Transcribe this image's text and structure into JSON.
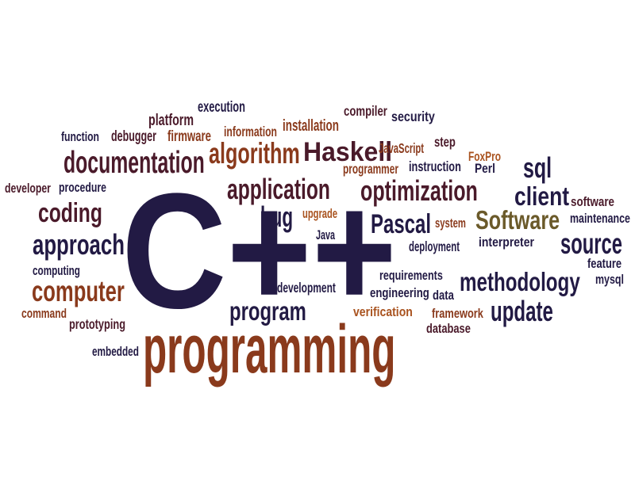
{
  "colors": {
    "navy": "#221a44",
    "plum": "#4a1a2a",
    "brown": "#8a3a1c",
    "orange": "#a9531f",
    "tan": "#6b5a2a"
  },
  "words": [
    {
      "id": "cpp",
      "text": "C++",
      "color": "navy"
    },
    {
      "id": "programming",
      "text": "programming",
      "color": "brown"
    },
    {
      "id": "documentation",
      "text": "documentation",
      "color": "plum"
    },
    {
      "id": "algorithm",
      "text": "algorithm",
      "color": "brown"
    },
    {
      "id": "haskell",
      "text": "Haskell",
      "color": "plum"
    },
    {
      "id": "application",
      "text": "application",
      "color": "plum"
    },
    {
      "id": "optimization",
      "text": "optimization",
      "color": "plum"
    },
    {
      "id": "software-big",
      "text": "Software",
      "color": "tan"
    },
    {
      "id": "methodology",
      "text": "methodology",
      "color": "navy"
    },
    {
      "id": "computer",
      "text": "computer",
      "color": "brown"
    },
    {
      "id": "approach",
      "text": "approach",
      "color": "navy"
    },
    {
      "id": "coding",
      "text": "coding",
      "color": "plum"
    },
    {
      "id": "program",
      "text": "program",
      "color": "navy"
    },
    {
      "id": "source",
      "text": "source",
      "color": "navy"
    },
    {
      "id": "update",
      "text": "update",
      "color": "navy"
    },
    {
      "id": "client",
      "text": "client",
      "color": "navy"
    },
    {
      "id": "pascal",
      "text": "Pascal",
      "color": "navy"
    },
    {
      "id": "sql",
      "text": "sql",
      "color": "navy"
    },
    {
      "id": "bug",
      "text": "bug",
      "color": "navy"
    },
    {
      "id": "execution",
      "text": "execution",
      "color": "navy"
    },
    {
      "id": "platform",
      "text": "platform",
      "color": "plum"
    },
    {
      "id": "compiler",
      "text": "compiler",
      "color": "plum"
    },
    {
      "id": "security",
      "text": "security",
      "color": "navy"
    },
    {
      "id": "function",
      "text": "function",
      "color": "navy"
    },
    {
      "id": "debugger",
      "text": "debugger",
      "color": "plum"
    },
    {
      "id": "firmware",
      "text": "firmware",
      "color": "brown"
    },
    {
      "id": "information",
      "text": "information",
      "color": "brown"
    },
    {
      "id": "installation",
      "text": "installation",
      "color": "brown"
    },
    {
      "id": "step",
      "text": "step",
      "color": "plum"
    },
    {
      "id": "javascript",
      "text": "JavaScript",
      "color": "brown"
    },
    {
      "id": "foxpro",
      "text": "FoxPro",
      "color": "orange"
    },
    {
      "id": "perl",
      "text": "Perl",
      "color": "navy"
    },
    {
      "id": "programmer",
      "text": "programmer",
      "color": "brown"
    },
    {
      "id": "instruction",
      "text": "instruction",
      "color": "navy"
    },
    {
      "id": "developer",
      "text": "developer",
      "color": "plum"
    },
    {
      "id": "procedure",
      "text": "procedure",
      "color": "navy"
    },
    {
      "id": "upgrade",
      "text": "upgrade",
      "color": "orange"
    },
    {
      "id": "java",
      "text": "Java",
      "color": "navy"
    },
    {
      "id": "system",
      "text": "system",
      "color": "brown"
    },
    {
      "id": "deployment",
      "text": "deployment",
      "color": "navy"
    },
    {
      "id": "interpreter",
      "text": "interpreter",
      "color": "navy"
    },
    {
      "id": "software-small",
      "text": "software",
      "color": "plum"
    },
    {
      "id": "maintenance",
      "text": "maintenance",
      "color": "navy"
    },
    {
      "id": "feature",
      "text": "feature",
      "color": "navy"
    },
    {
      "id": "mysql",
      "text": "mysql",
      "color": "navy"
    },
    {
      "id": "computing",
      "text": "computing",
      "color": "navy"
    },
    {
      "id": "command",
      "text": "command",
      "color": "brown"
    },
    {
      "id": "prototyping",
      "text": "prototyping",
      "color": "plum"
    },
    {
      "id": "embedded",
      "text": "embedded",
      "color": "navy"
    },
    {
      "id": "development",
      "text": "development",
      "color": "navy"
    },
    {
      "id": "requirements",
      "text": "requirements",
      "color": "navy"
    },
    {
      "id": "engineering",
      "text": "engineering",
      "color": "navy"
    },
    {
      "id": "data",
      "text": "data",
      "color": "navy"
    },
    {
      "id": "verification",
      "text": "verification",
      "color": "orange"
    },
    {
      "id": "framework",
      "text": "framework",
      "color": "brown"
    },
    {
      "id": "database",
      "text": "database",
      "color": "plum"
    }
  ]
}
